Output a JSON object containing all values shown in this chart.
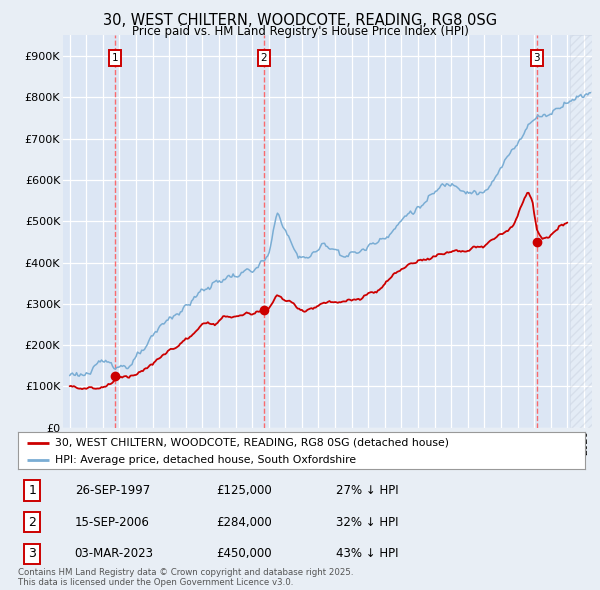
{
  "title": "30, WEST CHILTERN, WOODCOTE, READING, RG8 0SG",
  "subtitle": "Price paid vs. HM Land Registry's House Price Index (HPI)",
  "bg_color": "#e8eef5",
  "plot_bg_color": "#dce6f4",
  "grid_color": "#ffffff",
  "hpi_color": "#7aadd4",
  "price_color": "#cc0000",
  "ylim": [
    0,
    950000
  ],
  "yticks": [
    0,
    100000,
    200000,
    300000,
    400000,
    500000,
    600000,
    700000,
    800000,
    900000
  ],
  "ytick_labels": [
    "£0",
    "£100K",
    "£200K",
    "£300K",
    "£400K",
    "£500K",
    "£600K",
    "£700K",
    "£800K",
    "£900K"
  ],
  "sale_year_floats": [
    1997.75,
    2006.71,
    2023.17
  ],
  "sale_prices": [
    125000,
    284000,
    450000
  ],
  "sale_labels": [
    "1",
    "2",
    "3"
  ],
  "sale_table": [
    {
      "num": "1",
      "date": "26-SEP-1997",
      "price": "£125,000",
      "hpi": "27% ↓ HPI"
    },
    {
      "num": "2",
      "date": "15-SEP-2006",
      "price": "£284,000",
      "hpi": "32% ↓ HPI"
    },
    {
      "num": "3",
      "date": "03-MAR-2023",
      "price": "£450,000",
      "hpi": "43% ↓ HPI"
    }
  ],
  "legend_line1": "30, WEST CHILTERN, WOODCOTE, READING, RG8 0SG (detached house)",
  "legend_line2": "HPI: Average price, detached house, South Oxfordshire",
  "footer": "Contains HM Land Registry data © Crown copyright and database right 2025.\nThis data is licensed under the Open Government Licence v3.0.",
  "xmin": 1994.6,
  "xmax": 2026.5,
  "future_start": 2025.17
}
